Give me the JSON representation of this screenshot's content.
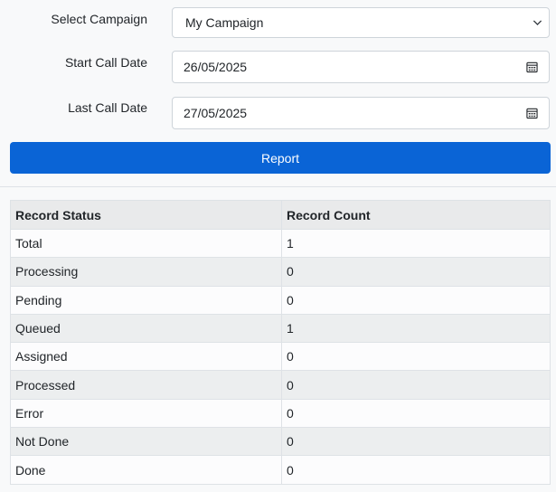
{
  "form": {
    "campaign_label": "Select Campaign",
    "campaign_value": "My Campaign",
    "start_label": "Start Call Date",
    "start_value": "26/05/2025",
    "last_label": "Last Call Date",
    "last_value": "27/05/2025",
    "report_label": "Report"
  },
  "table": {
    "headers": [
      "Record Status",
      "Record Count"
    ],
    "rows": [
      {
        "status": "Total",
        "count": "1"
      },
      {
        "status": "Processing",
        "count": "0"
      },
      {
        "status": "Pending",
        "count": "0"
      },
      {
        "status": "Queued",
        "count": "1"
      },
      {
        "status": "Assigned",
        "count": "0"
      },
      {
        "status": "Processed",
        "count": "0"
      },
      {
        "status": "Error",
        "count": "0"
      },
      {
        "status": "Not Done",
        "count": "0"
      },
      {
        "status": "Done",
        "count": "0"
      }
    ]
  },
  "colors": {
    "accent": "#0a64d6",
    "row_stripe": "#eceeef",
    "border": "#dee2e6"
  }
}
